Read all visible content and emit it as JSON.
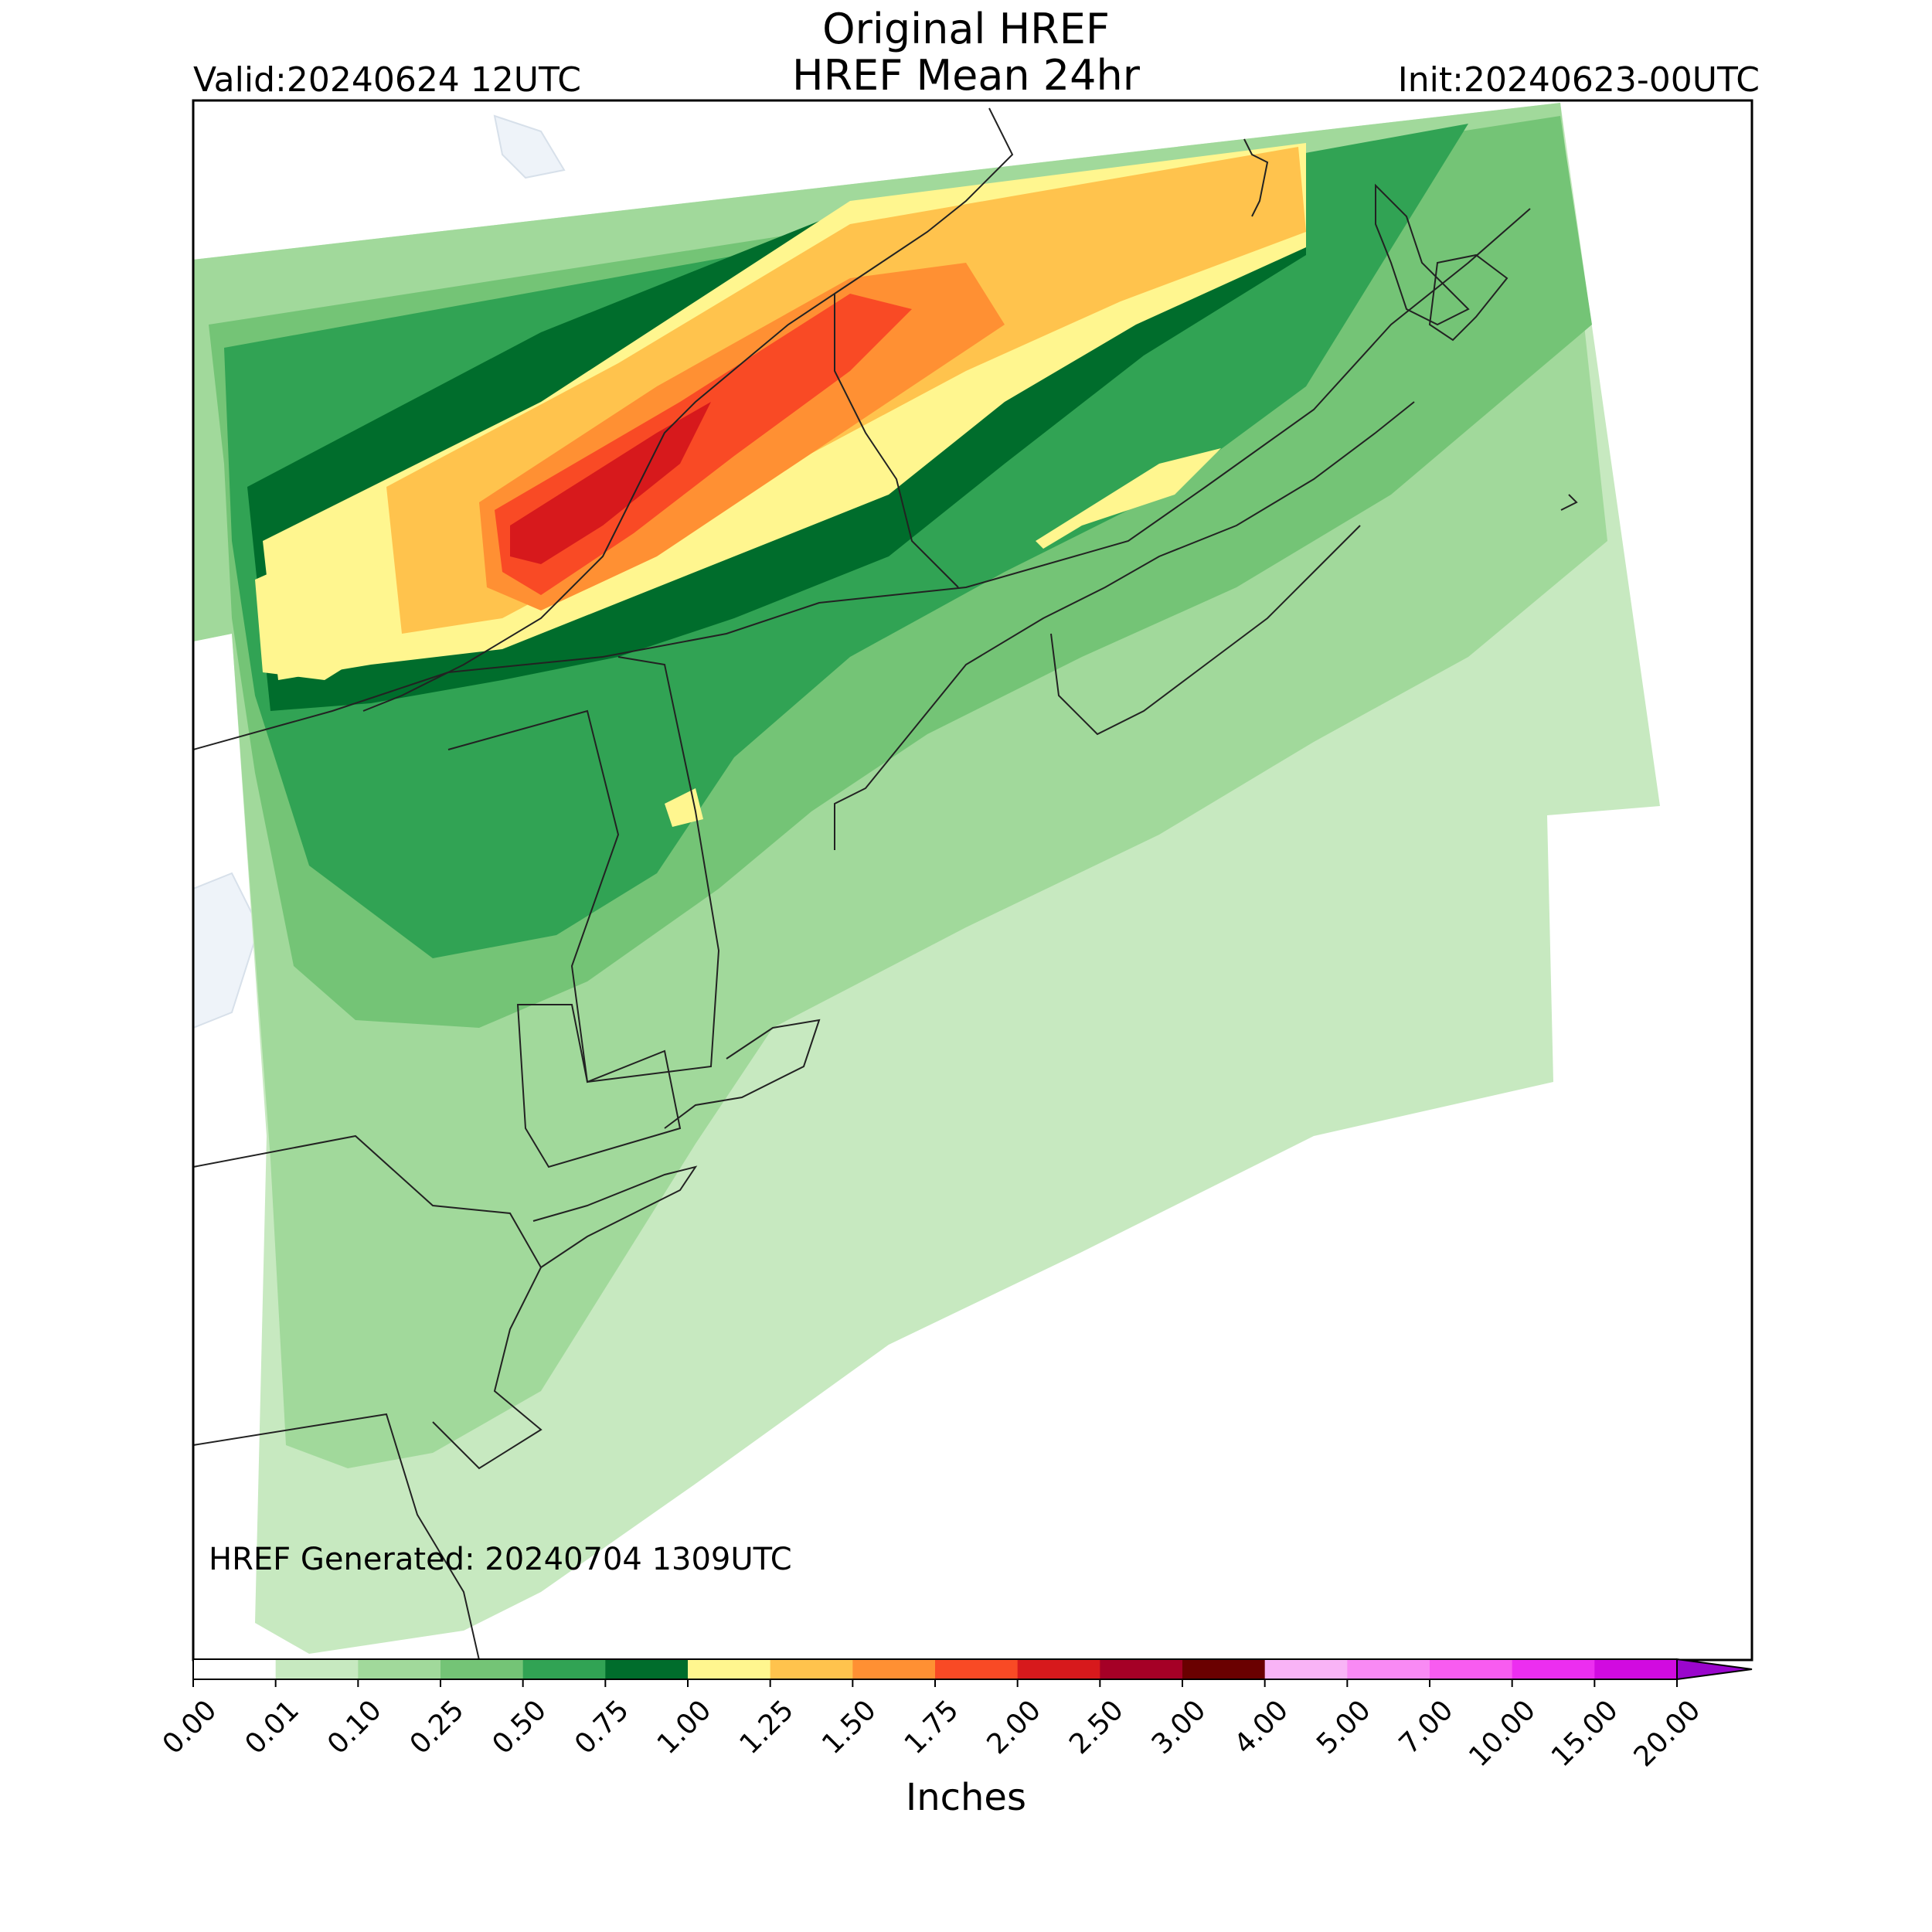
{
  "title": {
    "line1": "Original HREF",
    "line2": "HREF Mean 24hr"
  },
  "valid_label": "Valid:20240624 12UTC",
  "init_label": "Init:20240623-00UTC",
  "generated_label": "HREF Generated: 20240704 1309UTC",
  "colorbar": {
    "label": "Inches",
    "ticks": [
      "0.00",
      "0.01",
      "0.10",
      "0.25",
      "0.50",
      "0.75",
      "1.00",
      "1.25",
      "1.50",
      "1.75",
      "2.00",
      "2.50",
      "3.00",
      "4.00",
      "5.00",
      "7.00",
      "10.00",
      "15.00",
      "20.00"
    ],
    "colors": [
      "#ffffff",
      "#c7e9c0",
      "#a1d99b",
      "#74c476",
      "#31a354",
      "#006d2c",
      "#fff68f",
      "#ffc34d",
      "#ff9033",
      "#f94a25",
      "#d7191c",
      "#a50026",
      "#6a0000",
      "#f9b4f6",
      "#f98af4",
      "#f85cf0",
      "#ec2ef0",
      "#d10be0",
      "#9a06cc"
    ],
    "extend": "max"
  },
  "map": {
    "region": "Northeast US and Atlantic Canada",
    "colors": {
      "land_outline": "#000000",
      "water": "#eef3f9",
      "frame": "#000000"
    }
  }
}
